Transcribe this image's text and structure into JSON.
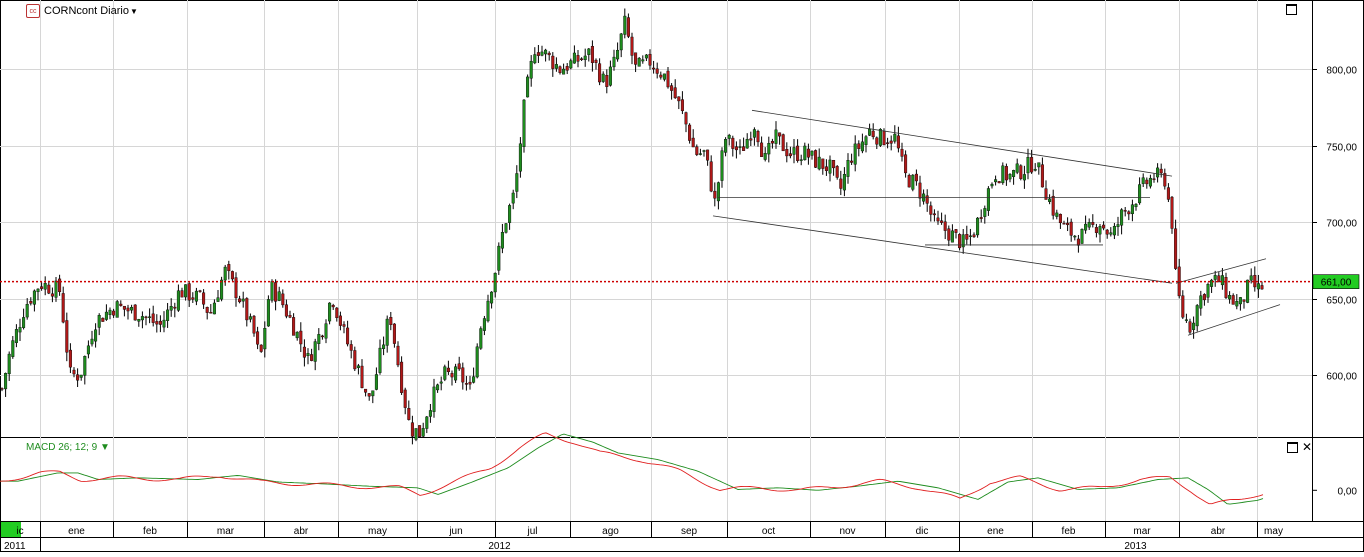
{
  "header": {
    "symbol_icon": "exchange-logo-icon",
    "title": "CORNcont Diario"
  },
  "macd": {
    "label": "MACD 26; 12; 9",
    "axis_label": "0,00"
  },
  "price_axis": {
    "ticks": [
      "800,00",
      "750,00",
      "700,00",
      "650,00",
      "600,00"
    ],
    "last_price": "661,00"
  },
  "time_axis": {
    "months": [
      "ic",
      "ene",
      "feb",
      "mar",
      "abr",
      "may",
      "jun",
      "jul",
      "ago",
      "sep",
      "oct",
      "nov",
      "dic",
      "ene",
      "feb",
      "mar",
      "abr",
      "may"
    ],
    "years": [
      "2011",
      "2012",
      "2013"
    ]
  },
  "chart_data": {
    "type": "candlestick",
    "title": "CORNcont Diario",
    "y_ticks": [
      600,
      650,
      700,
      750,
      800
    ],
    "ylim": [
      555,
      845
    ],
    "last_price": 661,
    "colors": {
      "up": "#1e8c1e",
      "down": "#b01818",
      "last_price_line": "#cc0000",
      "macd": "#e02020",
      "signal": "#1e8c1e"
    },
    "price_path": [
      [
        0,
        585
      ],
      [
        10,
        615
      ],
      [
        25,
        645
      ],
      [
        40,
        660
      ],
      [
        60,
        655
      ],
      [
        70,
        600
      ],
      [
        80,
        600
      ],
      [
        95,
        635
      ],
      [
        115,
        645
      ],
      [
        140,
        640
      ],
      [
        160,
        632
      ],
      [
        180,
        655
      ],
      [
        200,
        650
      ],
      [
        210,
        640
      ],
      [
        225,
        668
      ],
      [
        240,
        650
      ],
      [
        255,
        625
      ],
      [
        260,
        608
      ],
      [
        270,
        658
      ],
      [
        280,
        650
      ],
      [
        295,
        630
      ],
      [
        308,
        610
      ],
      [
        322,
        630
      ],
      [
        332,
        652
      ],
      [
        345,
        625
      ],
      [
        360,
        600
      ],
      [
        370,
        582
      ],
      [
        380,
        612
      ],
      [
        390,
        640
      ],
      [
        400,
        600
      ],
      [
        410,
        565
      ],
      [
        420,
        562
      ],
      [
        430,
        582
      ],
      [
        445,
        600
      ],
      [
        460,
        600
      ],
      [
        470,
        590
      ],
      [
        480,
        630
      ],
      [
        495,
        668
      ],
      [
        505,
        700
      ],
      [
        515,
        720
      ],
      [
        525,
        780
      ],
      [
        535,
        815
      ],
      [
        545,
        810
      ],
      [
        560,
        800
      ],
      [
        575,
        805
      ],
      [
        590,
        810
      ],
      [
        605,
        790
      ],
      [
        615,
        805
      ],
      [
        625,
        830
      ],
      [
        635,
        800
      ],
      [
        650,
        805
      ],
      [
        665,
        795
      ],
      [
        680,
        775
      ],
      [
        688,
        760
      ],
      [
        695,
        745
      ],
      [
        705,
        745
      ],
      [
        715,
        712
      ],
      [
        725,
        755
      ],
      [
        740,
        745
      ],
      [
        755,
        765
      ],
      [
        765,
        740
      ],
      [
        775,
        755
      ],
      [
        790,
        745
      ],
      [
        805,
        745
      ],
      [
        815,
        740
      ],
      [
        830,
        735
      ],
      [
        840,
        720
      ],
      [
        850,
        742
      ],
      [
        860,
        750
      ],
      [
        870,
        760
      ],
      [
        880,
        755
      ],
      [
        895,
        755
      ],
      [
        905,
        730
      ],
      [
        915,
        725
      ],
      [
        925,
        715
      ],
      [
        935,
        698
      ],
      [
        945,
        695
      ],
      [
        955,
        690
      ],
      [
        965,
        685
      ],
      [
        975,
        695
      ],
      [
        985,
        715
      ],
      [
        995,
        732
      ],
      [
        1010,
        730
      ],
      [
        1025,
        735
      ],
      [
        1035,
        740
      ],
      [
        1045,
        722
      ],
      [
        1055,
        705
      ],
      [
        1065,
        695
      ],
      [
        1080,
        690
      ],
      [
        1090,
        695
      ],
      [
        1100,
        700
      ],
      [
        1112,
        690
      ],
      [
        1122,
        705
      ],
      [
        1135,
        715
      ],
      [
        1145,
        725
      ],
      [
        1155,
        730
      ],
      [
        1165,
        728
      ],
      [
        1172,
        700
      ],
      [
        1176,
        660
      ],
      [
        1182,
        640
      ],
      [
        1190,
        632
      ],
      [
        1200,
        650
      ],
      [
        1210,
        660
      ],
      [
        1220,
        662
      ],
      [
        1230,
        650
      ],
      [
        1240,
        645
      ],
      [
        1250,
        660
      ],
      [
        1260,
        655
      ],
      [
        1265,
        661
      ]
    ],
    "macd_path": [
      [
        0,
        0.52
      ],
      [
        40,
        0.42
      ],
      [
        60,
        0.42
      ],
      [
        80,
        0.5
      ],
      [
        120,
        0.48
      ],
      [
        180,
        0.5
      ],
      [
        220,
        0.45
      ],
      [
        260,
        0.53
      ],
      [
        300,
        0.55
      ],
      [
        350,
        0.58
      ],
      [
        400,
        0.6
      ],
      [
        420,
        0.68
      ],
      [
        450,
        0.55
      ],
      [
        490,
        0.36
      ],
      [
        520,
        0.12
      ],
      [
        545,
        -0.05
      ],
      [
        575,
        0.05
      ],
      [
        600,
        0.18
      ],
      [
        640,
        0.26
      ],
      [
        680,
        0.4
      ],
      [
        720,
        0.62
      ],
      [
        760,
        0.6
      ],
      [
        800,
        0.63
      ],
      [
        840,
        0.58
      ],
      [
        880,
        0.52
      ],
      [
        920,
        0.6
      ],
      [
        960,
        0.74
      ],
      [
        990,
        0.53
      ],
      [
        1020,
        0.48
      ],
      [
        1060,
        0.62
      ],
      [
        1100,
        0.6
      ],
      [
        1140,
        0.5
      ],
      [
        1170,
        0.48
      ],
      [
        1190,
        0.62
      ],
      [
        1210,
        0.8
      ],
      [
        1240,
        0.75
      ],
      [
        1265,
        0.65
      ]
    ],
    "annotations": [
      {
        "type": "trendline",
        "points": [
          [
            752,
            773
          ],
          [
            1172,
            730
          ]
        ]
      },
      {
        "type": "trendline",
        "points": [
          [
            713,
            704
          ],
          [
            1172,
            660
          ]
        ]
      },
      {
        "type": "trendline",
        "points": [
          [
            718,
            716
          ],
          [
            1150,
            716
          ]
        ]
      },
      {
        "type": "trendline",
        "points": [
          [
            925,
            685
          ],
          [
            1103,
            685
          ]
        ]
      },
      {
        "type": "trendline",
        "points": [
          [
            1176,
            660
          ],
          [
            1266,
            676
          ]
        ]
      },
      {
        "type": "trendline",
        "points": [
          [
            1188,
            626
          ],
          [
            1280,
            646
          ]
        ]
      }
    ]
  }
}
